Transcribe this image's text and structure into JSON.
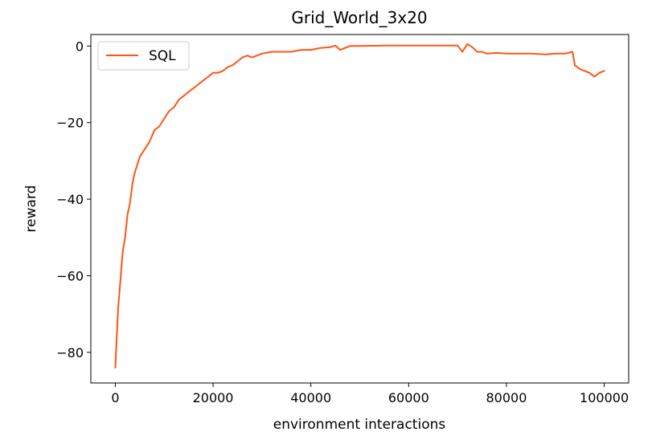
{
  "chart_data": {
    "type": "line",
    "title": "Grid_World_3x20",
    "xlabel": "environment interactions",
    "ylabel": "reward",
    "xlim": [
      -5000,
      105000
    ],
    "ylim": [
      -88,
      3
    ],
    "xticks": [
      0,
      20000,
      40000,
      60000,
      80000,
      100000
    ],
    "xtick_labels": [
      "0",
      "20000",
      "40000",
      "60000",
      "80000",
      "100000"
    ],
    "yticks": [
      0,
      -20,
      -40,
      -60,
      -80
    ],
    "ytick_labels": [
      "0",
      "−20",
      "−40",
      "−60",
      "−80"
    ],
    "grid": false,
    "legend": {
      "position": "upper-left"
    },
    "series": [
      {
        "name": "SQL",
        "color": "#ff5512",
        "x": [
          0,
          300,
          600,
          1000,
          1500,
          2000,
          2500,
          3000,
          3500,
          4000,
          4500,
          5000,
          6000,
          7000,
          8000,
          9000,
          10000,
          11000,
          12000,
          13000,
          14000,
          15000,
          16000,
          17000,
          18000,
          19000,
          20000,
          21000,
          22000,
          23000,
          24000,
          25000,
          26000,
          27000,
          28000,
          30000,
          32000,
          34000,
          36000,
          38000,
          40000,
          42000,
          44000,
          45000,
          46000,
          48000,
          50000,
          55000,
          60000,
          65000,
          70000,
          71000,
          72000,
          73000,
          74000,
          75000,
          76000,
          78000,
          80000,
          82000,
          85000,
          88000,
          90000,
          92000,
          93500,
          94000,
          95000,
          96000,
          97000,
          98000,
          99000,
          100000
        ],
        "y": [
          -84,
          -76,
          -68,
          -62,
          -54,
          -50,
          -44,
          -41,
          -36,
          -33,
          -31,
          -29,
          -27,
          -25,
          -22,
          -21,
          -19,
          -17,
          -16,
          -14,
          -13,
          -12,
          -11,
          -10,
          -9,
          -8,
          -7,
          -7,
          -6.5,
          -5.5,
          -5,
          -4,
          -3,
          -2.5,
          -3,
          -2,
          -1.5,
          -1.5,
          -1.5,
          -1,
          -1,
          -0.5,
          -0.3,
          0.1,
          -1,
          0,
          0,
          0.1,
          0.1,
          0.1,
          0.1,
          -1.5,
          0.5,
          -0.3,
          -1.5,
          -1.5,
          -2,
          -1.8,
          -2,
          -2,
          -2,
          -2.2,
          -2,
          -2,
          -1.5,
          -5,
          -6,
          -6.5,
          -7,
          -8,
          -7,
          -6.5
        ]
      }
    ]
  }
}
